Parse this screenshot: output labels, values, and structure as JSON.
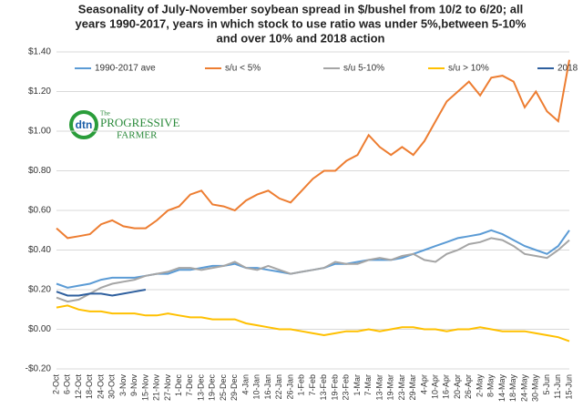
{
  "chart_data": {
    "type": "line",
    "title_lines": [
      "Seasonality of July-November soybean spread in $/bushel from 10/2 to 6/20; all",
      "years 1990-2017, years in which stock to use ratio was under 5%,between 5-10%",
      "and over 10% and 2018 action"
    ],
    "logo": {
      "mark": "dtn",
      "small": "The",
      "name": "PROGRESSIVE",
      "name2": "FARMER"
    },
    "categories": [
      "2-Oct",
      "6-Oct",
      "12-Oct",
      "18-Oct",
      "24-Oct",
      "30-Oct",
      "3-Nov",
      "9-Nov",
      "15-Nov",
      "21-Nov",
      "27-Nov",
      "1-Dec",
      "7-Dec",
      "13-Dec",
      "19-Dec",
      "25-Dec",
      "29-Dec",
      "4-Jan",
      "10-Jan",
      "16-Jan",
      "22-Jan",
      "26-Jan",
      "1-Feb",
      "7-Feb",
      "13-Feb",
      "19-Feb",
      "23-Feb",
      "1-Mar",
      "7-Mar",
      "13-Mar",
      "19-Mar",
      "23-Mar",
      "29-Mar",
      "4-Apr",
      "10-Apr",
      "16-Apr",
      "20-Apr",
      "26-Apr",
      "2-May",
      "8-May",
      "14-May",
      "18-May",
      "24-May",
      "30-May",
      "5-Jun",
      "11-Jun",
      "15-Jun"
    ],
    "series": [
      {
        "name": "1990-2017 ave",
        "color": "#5b9bd5",
        "values": [
          0.23,
          0.21,
          0.22,
          0.23,
          0.25,
          0.26,
          0.26,
          0.26,
          0.27,
          0.28,
          0.28,
          0.3,
          0.3,
          0.31,
          0.32,
          0.32,
          0.33,
          0.31,
          0.31,
          0.3,
          0.29,
          0.28,
          0.29,
          0.3,
          0.31,
          0.33,
          0.33,
          0.34,
          0.35,
          0.35,
          0.35,
          0.36,
          0.38,
          0.4,
          0.42,
          0.44,
          0.46,
          0.47,
          0.48,
          0.5,
          0.48,
          0.45,
          0.42,
          0.4,
          0.38,
          0.42,
          0.5
        ]
      },
      {
        "name": "s/u < 5%",
        "color": "#ed7d31",
        "values": [
          0.51,
          0.46,
          0.47,
          0.48,
          0.53,
          0.55,
          0.52,
          0.51,
          0.51,
          0.55,
          0.6,
          0.62,
          0.68,
          0.7,
          0.63,
          0.62,
          0.6,
          0.65,
          0.68,
          0.7,
          0.66,
          0.64,
          0.7,
          0.76,
          0.8,
          0.8,
          0.85,
          0.88,
          0.98,
          0.92,
          0.88,
          0.92,
          0.88,
          0.95,
          1.05,
          1.15,
          1.2,
          1.25,
          1.18,
          1.27,
          1.28,
          1.25,
          1.12,
          1.2,
          1.1,
          1.05,
          1.36
        ]
      },
      {
        "name": "s/u 5-10%",
        "color": "#a5a5a5",
        "values": [
          0.16,
          0.14,
          0.15,
          0.18,
          0.21,
          0.23,
          0.24,
          0.25,
          0.27,
          0.28,
          0.29,
          0.31,
          0.31,
          0.3,
          0.31,
          0.32,
          0.34,
          0.31,
          0.3,
          0.32,
          0.3,
          0.28,
          0.29,
          0.3,
          0.31,
          0.34,
          0.33,
          0.33,
          0.35,
          0.36,
          0.35,
          0.37,
          0.38,
          0.35,
          0.34,
          0.38,
          0.4,
          0.43,
          0.44,
          0.46,
          0.45,
          0.42,
          0.38,
          0.37,
          0.36,
          0.4,
          0.45
        ]
      },
      {
        "name": "s/u > 10%",
        "color": "#ffc000",
        "values": [
          0.11,
          0.12,
          0.1,
          0.09,
          0.09,
          0.08,
          0.08,
          0.08,
          0.07,
          0.07,
          0.08,
          0.07,
          0.06,
          0.06,
          0.05,
          0.05,
          0.05,
          0.03,
          0.02,
          0.01,
          0.0,
          0.0,
          -0.01,
          -0.02,
          -0.03,
          -0.02,
          -0.01,
          -0.01,
          0.0,
          -0.01,
          0.0,
          0.01,
          0.01,
          0.0,
          0.0,
          -0.01,
          0.0,
          0.0,
          0.01,
          0.0,
          -0.01,
          -0.01,
          -0.01,
          -0.02,
          -0.03,
          -0.04,
          -0.06
        ]
      },
      {
        "name": "2018",
        "color": "#2e5f9e",
        "values": [
          0.19,
          0.17,
          0.17,
          0.18,
          0.18,
          0.17,
          0.18,
          0.19,
          0.2,
          null,
          null,
          null,
          null,
          null,
          null,
          null,
          null,
          null,
          null,
          null,
          null,
          null,
          null,
          null,
          null,
          null,
          null,
          null,
          null,
          null,
          null,
          null,
          null,
          null,
          null,
          null,
          null,
          null,
          null,
          null,
          null,
          null,
          null,
          null,
          null,
          null,
          null
        ]
      }
    ],
    "ylim": [
      -0.2,
      1.4
    ],
    "yticks": [
      {
        "value": -0.2,
        "label": "-$0.20"
      },
      {
        "value": 0,
        "label": "$0.00"
      },
      {
        "value": 0.2,
        "label": "$0.20"
      },
      {
        "value": 0.4,
        "label": "$0.40"
      },
      {
        "value": 0.6,
        "label": "$0.60"
      },
      {
        "value": 0.8,
        "label": "$0.80"
      },
      {
        "value": 1.0,
        "label": "$1.00"
      },
      {
        "value": 1.2,
        "label": "$1.20"
      },
      {
        "value": 1.4,
        "label": "$1.40"
      }
    ],
    "grid": true,
    "legend": "top"
  }
}
